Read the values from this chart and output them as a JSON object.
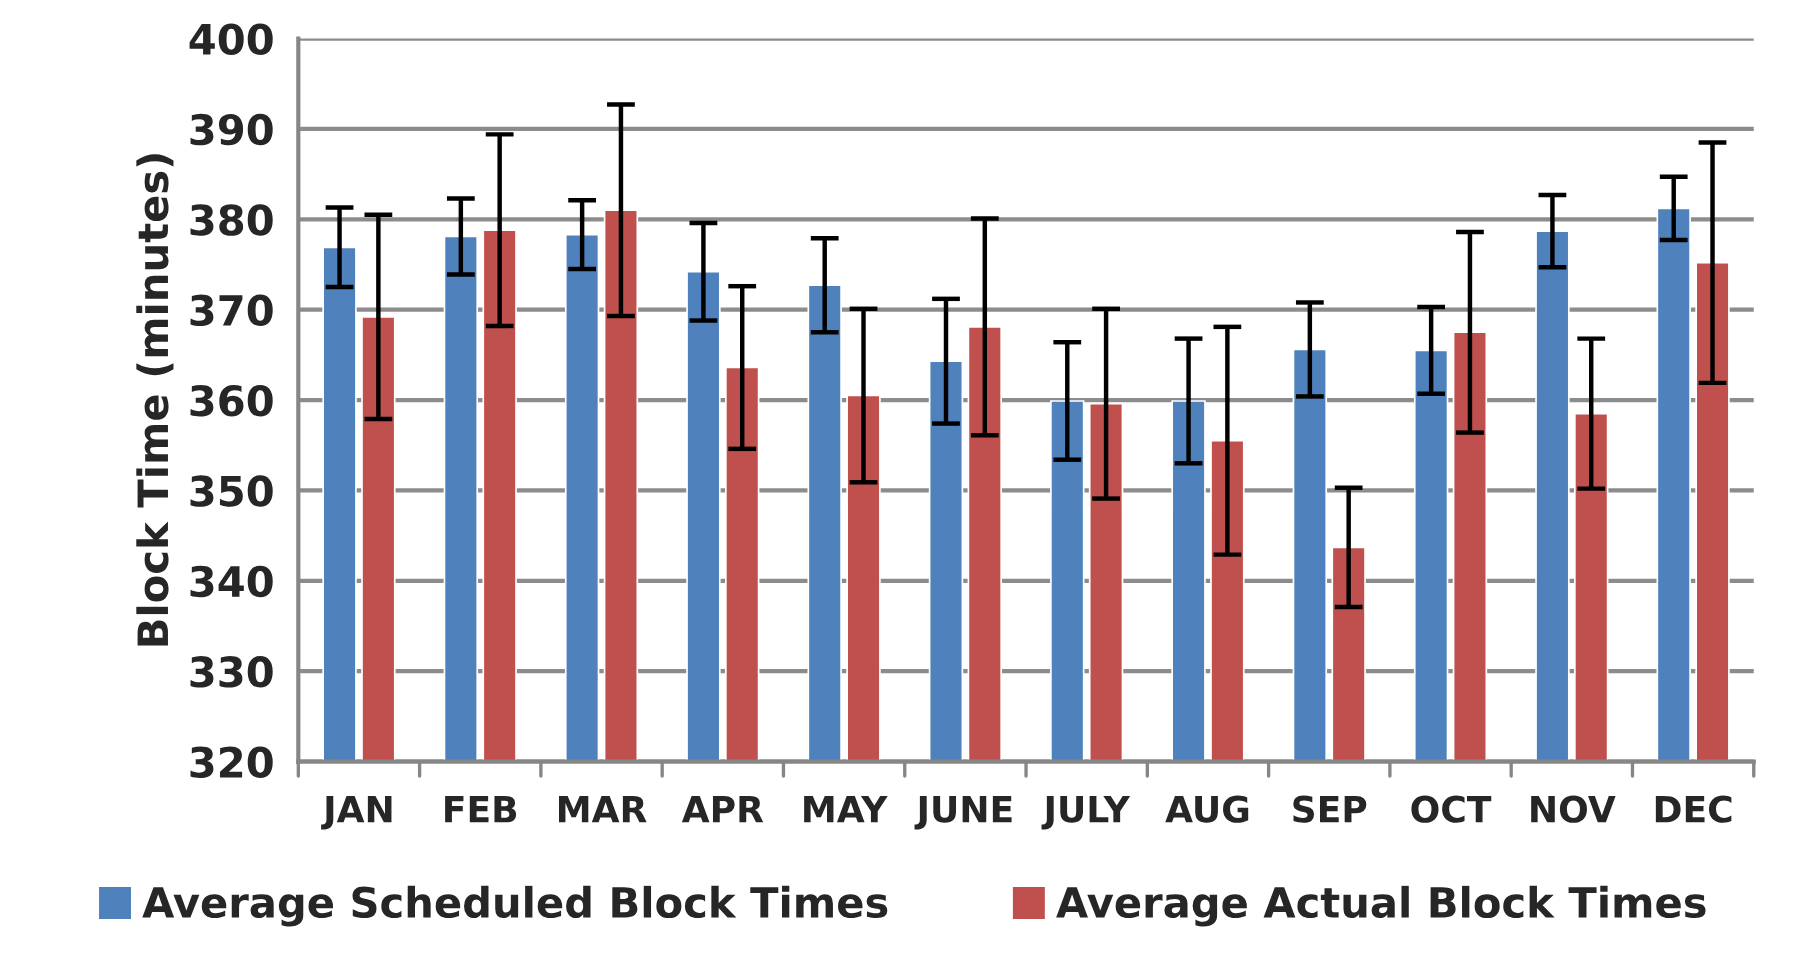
{
  "chart_data": {
    "type": "bar",
    "ylabel": "Block Time (minutes)",
    "categories": [
      "JAN",
      "FEB",
      "MAR",
      "APR",
      "MAY",
      "JUNE",
      "JULY",
      "AUG",
      "SEP",
      "OCT",
      "NOV",
      "DEC"
    ],
    "series": [
      {
        "name": "Average Scheduled Block Times",
        "color": "#4f81bd",
        "values": [
          376.9,
          378.1,
          378.3,
          374.2,
          372.7,
          364.3,
          359.9,
          359.9,
          365.6,
          365.5,
          378.7,
          381.2
        ],
        "errors": [
          4.4,
          4.2,
          3.8,
          5.4,
          5.2,
          6.9,
          6.5,
          6.9,
          5.2,
          4.8,
          4.0,
          3.5
        ]
      },
      {
        "name": "Average Actual Block Times",
        "color": "#c0504d",
        "values": [
          369.2,
          378.8,
          381.0,
          363.6,
          360.5,
          368.1,
          359.6,
          355.5,
          343.7,
          367.5,
          358.5,
          375.2
        ],
        "errors": [
          11.3,
          10.6,
          11.7,
          9.0,
          9.6,
          12.0,
          10.5,
          12.6,
          6.6,
          11.1,
          8.3,
          13.3
        ]
      }
    ],
    "ylim": [
      320,
      400
    ],
    "yticks": [
      320,
      330,
      340,
      350,
      360,
      370,
      380,
      390,
      400
    ],
    "grid": "y",
    "legend": "bottom"
  }
}
